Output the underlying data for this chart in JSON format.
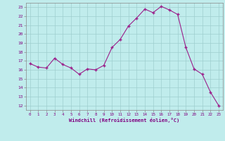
{
  "x": [
    0,
    1,
    2,
    3,
    4,
    5,
    6,
    7,
    8,
    9,
    10,
    11,
    12,
    13,
    14,
    15,
    16,
    17,
    18,
    19,
    20,
    21,
    22,
    23
  ],
  "y": [
    16.7,
    16.3,
    16.2,
    17.3,
    16.6,
    16.2,
    15.5,
    16.1,
    16.0,
    16.5,
    18.5,
    19.4,
    20.9,
    21.8,
    22.8,
    22.4,
    23.1,
    22.7,
    22.2,
    18.5,
    16.1,
    15.5,
    13.5,
    12.0
  ],
  "line_color": "#9B1F8A",
  "marker_color": "#9B1F8A",
  "bg_color": "#C0ECEC",
  "grid_color": "#9ECECE",
  "tick_color": "#800080",
  "xlabel": "Windchill (Refroidissement éolien,°C)",
  "ylabel_ticks": [
    12,
    13,
    14,
    15,
    16,
    17,
    18,
    19,
    20,
    21,
    22,
    23
  ],
  "xlim": [
    -0.5,
    23.5
  ],
  "ylim": [
    11.5,
    23.5
  ]
}
